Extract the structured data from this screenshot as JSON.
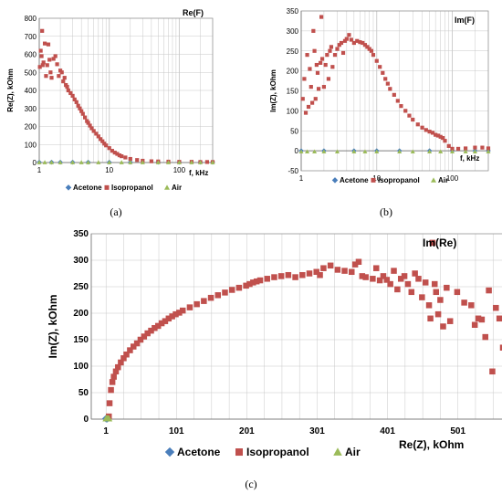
{
  "colors": {
    "acetone": "#4a7ebb",
    "isopropanol": "#c0504d",
    "air": "#9bbb59",
    "grid": "#c8c8c8"
  },
  "chart_data": [
    {
      "type": "scatter",
      "panel": "(a)",
      "title": "Re(F)",
      "xlabel": "f, kHz",
      "ylabel": "Re(Z), kOhm",
      "xscale": "log",
      "xlim": [
        1,
        300
      ],
      "ylim": [
        0,
        800
      ],
      "xticks": [
        "1",
        "10",
        "100"
      ],
      "yticks": [
        "0",
        "100",
        "200",
        "300",
        "400",
        "500",
        "600",
        "700",
        "800"
      ],
      "legend": "bottom",
      "series": [
        {
          "name": "Acetone",
          "marker": "diamond",
          "x": [
            1,
            1.5,
            2,
            3,
            5,
            10,
            20,
            50,
            100,
            200,
            300
          ],
          "y": [
            2,
            2,
            2,
            2,
            2,
            2,
            2,
            2,
            2,
            2,
            2
          ]
        },
        {
          "name": "Isopropanol",
          "marker": "square",
          "x": [
            1.02,
            1.05,
            1.08,
            1.1,
            1.12,
            1.15,
            1.2,
            1.25,
            1.3,
            1.35,
            1.4,
            1.45,
            1.5,
            1.6,
            1.7,
            1.8,
            1.9,
            2,
            2.1,
            2.2,
            2.3,
            2.4,
            2.5,
            2.6,
            2.8,
            3,
            3.2,
            3.4,
            3.6,
            3.8,
            4,
            4.2,
            4.5,
            4.8,
            5,
            5.3,
            5.6,
            6,
            6.5,
            7,
            7.5,
            8,
            8.5,
            9,
            10,
            11,
            12,
            13,
            14,
            15,
            17,
            20,
            25,
            30,
            40,
            50,
            70,
            100,
            150,
            200,
            250,
            300
          ],
          "y": [
            530,
            620,
            590,
            730,
            540,
            555,
            660,
            480,
            540,
            655,
            570,
            500,
            470,
            575,
            590,
            545,
            480,
            510,
            500,
            450,
            470,
            430,
            420,
            400,
            385,
            370,
            350,
            335,
            315,
            300,
            285,
            270,
            250,
            230,
            220,
            205,
            190,
            175,
            160,
            145,
            130,
            118,
            105,
            95,
            80,
            65,
            55,
            48,
            40,
            35,
            28,
            20,
            14,
            10,
            7,
            6,
            5,
            4,
            4,
            3,
            3,
            3
          ]
        },
        {
          "name": "Air",
          "marker": "triangle",
          "x": [
            1,
            1.2,
            1.5,
            2,
            3,
            4,
            5,
            7,
            10,
            15,
            20,
            30,
            50,
            70,
            100,
            150,
            200,
            300
          ],
          "y": [
            1,
            1,
            1,
            1,
            1,
            1,
            1,
            1,
            1,
            1,
            1,
            1,
            1,
            1,
            1,
            1,
            1,
            1
          ]
        }
      ]
    },
    {
      "type": "scatter",
      "panel": "(b)",
      "title": "Im(F)",
      "xlabel": "f, kHz",
      "ylabel": "Im(Z), kOhm",
      "xscale": "log",
      "xlim": [
        1,
        300
      ],
      "ylim": [
        -50,
        350
      ],
      "xticks": [
        "1",
        "10",
        "100"
      ],
      "yticks": [
        "-50",
        "0",
        "50",
        "100",
        "150",
        "200",
        "250",
        "300",
        "350"
      ],
      "legend": "bottom",
      "series": [
        {
          "name": "Acetone",
          "marker": "diamond",
          "x": [
            1,
            2,
            5,
            10,
            20,
            50,
            100,
            200,
            300
          ],
          "y": [
            0,
            0,
            0,
            0,
            0,
            0,
            0,
            0,
            0
          ]
        },
        {
          "name": "Isopropanol",
          "marker": "square",
          "x": [
            1.05,
            1.1,
            1.15,
            1.2,
            1.25,
            1.3,
            1.35,
            1.4,
            1.45,
            1.5,
            1.55,
            1.6,
            1.65,
            1.7,
            1.8,
            1.85,
            1.9,
            2,
            2.1,
            2.2,
            2.3,
            2.4,
            2.5,
            2.6,
            2.8,
            3,
            3.2,
            3.4,
            3.6,
            3.8,
            4,
            4.3,
            4.6,
            5,
            5.5,
            6,
            6.5,
            7,
            7.5,
            8,
            8.5,
            9,
            10,
            11,
            12,
            13,
            14,
            15,
            17,
            19,
            21,
            24,
            27,
            30,
            35,
            40,
            45,
            50,
            55,
            60,
            65,
            70,
            75,
            80,
            90,
            100,
            120,
            150,
            200,
            250,
            300
          ],
          "y": [
            130,
            180,
            95,
            240,
            110,
            205,
            160,
            120,
            300,
            250,
            130,
            215,
            195,
            155,
            220,
            335,
            230,
            160,
            215,
            240,
            180,
            250,
            260,
            210,
            240,
            255,
            265,
            270,
            245,
            275,
            280,
            290,
            278,
            270,
            275,
            272,
            270,
            265,
            260,
            255,
            250,
            240,
            225,
            210,
            195,
            180,
            168,
            155,
            140,
            125,
            112,
            100,
            88,
            78,
            66,
            58,
            52,
            48,
            45,
            40,
            38,
            35,
            32,
            25,
            12,
            5,
            5,
            6,
            8,
            8,
            6
          ]
        },
        {
          "name": "Air",
          "marker": "triangle",
          "x": [
            1,
            1.2,
            1.5,
            2,
            3,
            5,
            7,
            10,
            20,
            30,
            50,
            70,
            100,
            150,
            200,
            300
          ],
          "y": [
            -2,
            -2,
            -2,
            -2,
            -2,
            -2,
            -2,
            -2,
            -2,
            -2,
            -2,
            -2,
            -2,
            -2,
            -2,
            -2
          ]
        }
      ]
    },
    {
      "type": "scatter",
      "panel": "(c)",
      "title": "Im(Re)",
      "xlabel": "Re(Z), kOhm",
      "ylabel": "Im(Z), kOhm",
      "xlim": [
        -20,
        600
      ],
      "ylim": [
        0,
        350
      ],
      "xticks": [
        "1",
        "101",
        "201",
        "301",
        "401",
        "501"
      ],
      "yticks": [
        "0",
        "50",
        "100",
        "150",
        "200",
        "250",
        "300",
        "350"
      ],
      "legend": "bottom",
      "series": [
        {
          "name": "Acetone",
          "marker": "diamond",
          "x": [
            1,
            2,
            3
          ],
          "y": [
            1,
            1,
            1
          ]
        },
        {
          "name": "Isopropanol",
          "marker": "square",
          "x": [
            5,
            6,
            8,
            10,
            12,
            15,
            18,
            22,
            26,
            30,
            35,
            40,
            45,
            50,
            55,
            60,
            65,
            70,
            75,
            80,
            85,
            90,
            95,
            100,
            105,
            110,
            120,
            130,
            140,
            150,
            160,
            170,
            180,
            190,
            200,
            205,
            210,
            215,
            220,
            230,
            240,
            250,
            260,
            270,
            280,
            290,
            300,
            305,
            310,
            320,
            330,
            340,
            350,
            355,
            360,
            365,
            370,
            380,
            385,
            390,
            395,
            400,
            405,
            410,
            415,
            420,
            425,
            430,
            435,
            440,
            445,
            450,
            455,
            460,
            462,
            465,
            468,
            470,
            473,
            476,
            480,
            485,
            490,
            500,
            510,
            520,
            525,
            530,
            535,
            540,
            545,
            550,
            555,
            560,
            565,
            570,
            575,
            580
          ],
          "y": [
            5,
            30,
            55,
            70,
            80,
            90,
            98,
            107,
            115,
            122,
            130,
            137,
            143,
            150,
            156,
            162,
            167,
            172,
            176,
            181,
            185,
            190,
            194,
            198,
            201,
            205,
            211,
            217,
            223,
            229,
            234,
            239,
            244,
            248,
            252,
            255,
            258,
            260,
            262,
            265,
            268,
            270,
            272,
            268,
            272,
            275,
            278,
            272,
            285,
            290,
            282,
            280,
            278,
            292,
            297,
            270,
            268,
            265,
            285,
            262,
            270,
            263,
            255,
            280,
            245,
            265,
            270,
            255,
            240,
            275,
            265,
            230,
            258,
            215,
            190,
            333,
            255,
            240,
            198,
            225,
            175,
            248,
            185,
            240,
            220,
            215,
            178,
            190,
            188,
            155,
            243,
            90,
            210,
            190,
            135,
            140,
            43,
            300
          ]
        },
        {
          "name": "Air",
          "marker": "triangle",
          "x": [
            1,
            2,
            3,
            4,
            5
          ],
          "y": [
            1,
            1,
            1,
            1,
            1
          ]
        }
      ]
    }
  ]
}
